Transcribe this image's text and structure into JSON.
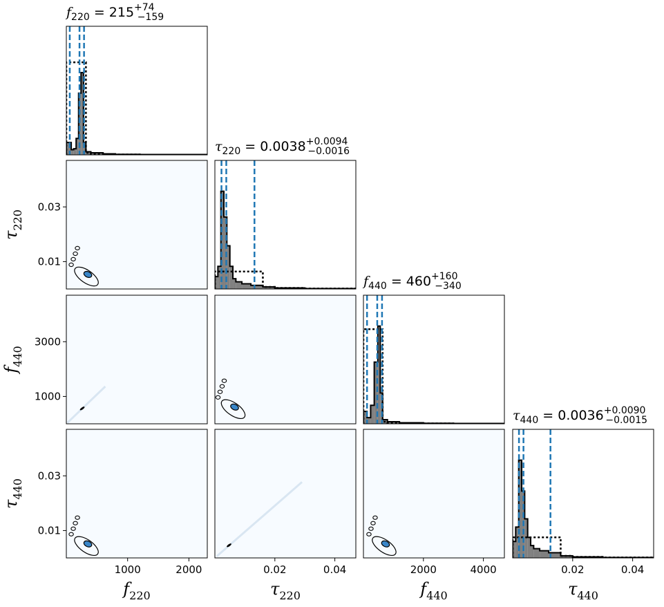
{
  "chart_data": {
    "type": "corner",
    "parameters": [
      {
        "symbol": "f",
        "sub": "220",
        "range": [
          0,
          2300
        ],
        "ticks": [
          1000,
          2000
        ],
        "tick_labels": [
          "1000",
          "2000"
        ],
        "title": {
          "base": "f",
          "sub": "220",
          "eq": " = 215",
          "plus": "+74",
          "minus": "−159"
        },
        "median": 215,
        "lower": 56,
        "upper": 289,
        "hist_bins": [
          0,
          80,
          120,
          160,
          200,
          240,
          280,
          320,
          400,
          600,
          800,
          1200,
          2300
        ],
        "hist_values": [
          0.12,
          0.05,
          0.06,
          0.16,
          0.6,
          0.8,
          0.12,
          0.03,
          0.02,
          0.01,
          0.005,
          0.003
        ],
        "prior_values": [
          0.9,
          0.9,
          0.9,
          0.9,
          0.9,
          0.9,
          0.9,
          0.02,
          0.01,
          0.005,
          0.003,
          0.002
        ]
      },
      {
        "symbol": "τ",
        "sub": "220",
        "range": [
          0,
          0.047
        ],
        "ticks": [
          0.02,
          0.04
        ],
        "tick_labels": [
          "0.02",
          "0.04"
        ],
        "title": {
          "base": "τ",
          "sub": "220",
          "eq": " = 0.0038",
          "plus": "+0.0094",
          "minus": "−0.0016"
        },
        "median": 0.0038,
        "lower": 0.0022,
        "upper": 0.0132,
        "hist_bins": [
          0,
          0.001,
          0.002,
          0.003,
          0.004,
          0.005,
          0.006,
          0.007,
          0.009,
          0.012,
          0.016,
          0.02,
          0.03,
          0.047
        ],
        "hist_values": [
          0.12,
          0.22,
          0.95,
          0.7,
          0.42,
          0.22,
          0.1,
          0.07,
          0.05,
          0.035,
          0.02,
          0.01,
          0.004
        ],
        "prior_values": [
          0.17,
          0.17,
          0.17,
          0.17,
          0.17,
          0.17,
          0.17,
          0.17,
          0.17,
          0.17,
          0.02,
          0.01,
          0.004
        ]
      },
      {
        "symbol": "f",
        "sub": "440",
        "range": [
          0,
          4700
        ],
        "ticks": [
          2000,
          4000
        ],
        "tick_labels": [
          "2000",
          "4000"
        ],
        "title": {
          "base": "f",
          "sub": "440",
          "eq": " = 460",
          "plus": "+160",
          "minus": "−340"
        },
        "median": 460,
        "lower": 120,
        "upper": 620,
        "hist_bins": [
          0,
          120,
          240,
          360,
          480,
          560,
          640,
          800,
          1200,
          2000,
          3000,
          4700
        ],
        "hist_values": [
          0.12,
          0.06,
          0.18,
          0.6,
          0.95,
          0.3,
          0.04,
          0.02,
          0.01,
          0.005,
          0.003
        ],
        "prior_values": [
          0.92,
          0.92,
          0.92,
          0.92,
          0.92,
          0.92,
          0.02,
          0.01,
          0.005,
          0.003,
          0.002
        ]
      },
      {
        "symbol": "τ",
        "sub": "440",
        "range": [
          0,
          0.047
        ],
        "ticks": [
          0.02,
          0.04
        ],
        "tick_labels": [
          "0.02",
          "0.04"
        ],
        "title": {
          "base": "τ",
          "sub": "440",
          "eq": " = 0.0036",
          "plus": "+0.0090",
          "minus": "−0.0015"
        },
        "median": 0.0036,
        "lower": 0.0021,
        "upper": 0.0126,
        "hist_bins": [
          0,
          0.001,
          0.002,
          0.003,
          0.004,
          0.005,
          0.006,
          0.007,
          0.009,
          0.012,
          0.016,
          0.02,
          0.03,
          0.047
        ],
        "hist_values": [
          0.16,
          0.3,
          0.95,
          0.65,
          0.38,
          0.2,
          0.12,
          0.09,
          0.07,
          0.05,
          0.02,
          0.01,
          0.004
        ],
        "prior_values": [
          0.2,
          0.2,
          0.2,
          0.2,
          0.2,
          0.2,
          0.2,
          0.2,
          0.2,
          0.2,
          0.02,
          0.01,
          0.004
        ]
      }
    ],
    "y_axes": [
      {
        "row": 1,
        "ticks": [
          0.01,
          0.03
        ],
        "tick_labels": [
          "0.01",
          "0.03"
        ]
      },
      {
        "row": 2,
        "ticks": [
          1000,
          3000
        ],
        "tick_labels": [
          "1000",
          "3000"
        ]
      },
      {
        "row": 3,
        "ticks": [
          0.01,
          0.03
        ],
        "tick_labels": [
          "0.01",
          "0.03"
        ]
      }
    ],
    "contour_levels": [
      0.39,
      0.86
    ],
    "colors": {
      "hist_fill": "#808080",
      "hist_line": "#000000",
      "quantile_line": "#1f77b4",
      "density_bg": "#f7fbff",
      "density_core": "#3a86c8",
      "prior_line": "#000000"
    }
  }
}
